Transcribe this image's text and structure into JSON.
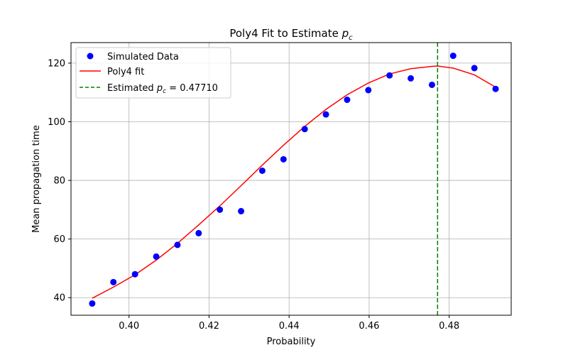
{
  "chart_data": {
    "type": "scatter",
    "title": "Poly4 Fit to Estimate ",
    "title_symbol": "p",
    "title_subscript": "c",
    "xlabel": "Probability",
    "ylabel": "Mean propagation time",
    "xlim": [
      0.3855,
      0.4955
    ],
    "ylim": [
      34,
      127
    ],
    "xticks": [
      0.4,
      0.42,
      0.44,
      0.46,
      0.48
    ],
    "xtick_labels": [
      "0.40",
      "0.42",
      "0.44",
      "0.46",
      "0.48"
    ],
    "yticks": [
      40,
      60,
      80,
      100,
      120
    ],
    "ytick_labels": [
      "40",
      "60",
      "80",
      "100",
      "120"
    ],
    "grid": true,
    "legend_position": "top-left",
    "series": [
      {
        "name": "Simulated Data",
        "kind": "scatter",
        "color": "#0000ff",
        "x": [
          0.3908,
          0.3961,
          0.4015,
          0.4068,
          0.4121,
          0.4174,
          0.4227,
          0.428,
          0.4333,
          0.4386,
          0.4439,
          0.4492,
          0.4545,
          0.4598,
          0.4651,
          0.4704,
          0.4757,
          0.481,
          0.4863,
          0.4916
        ],
        "y": [
          38,
          45.3,
          48,
          54,
          58,
          62,
          70,
          69.5,
          83.3,
          87.2,
          97.5,
          102.5,
          107.5,
          110.8,
          115.8,
          114.8,
          112.6,
          122.5,
          118.3,
          111.2
        ]
      },
      {
        "name": "Poly4 fit",
        "kind": "line",
        "color": "#ff0000",
        "x": [
          0.3908,
          0.3961,
          0.4015,
          0.4068,
          0.4121,
          0.4174,
          0.4227,
          0.428,
          0.4333,
          0.4386,
          0.4439,
          0.4492,
          0.4545,
          0.4598,
          0.4651,
          0.4704,
          0.4757,
          0.4771,
          0.481,
          0.4863,
          0.4916
        ],
        "y": [
          39.8,
          43.6,
          47.8,
          52.8,
          58.5,
          64.8,
          71.3,
          78.2,
          85.2,
          92.0,
          98.4,
          104.2,
          109.2,
          113.2,
          116.3,
          118.1,
          118.9,
          119.0,
          118.3,
          116.0,
          111.8
        ]
      },
      {
        "name": "Estimated ",
        "name_symbol": "p",
        "name_subscript": "c",
        "name_suffix": " = 0.47710",
        "kind": "vline",
        "color": "#008000",
        "x": 0.4771
      }
    ]
  }
}
